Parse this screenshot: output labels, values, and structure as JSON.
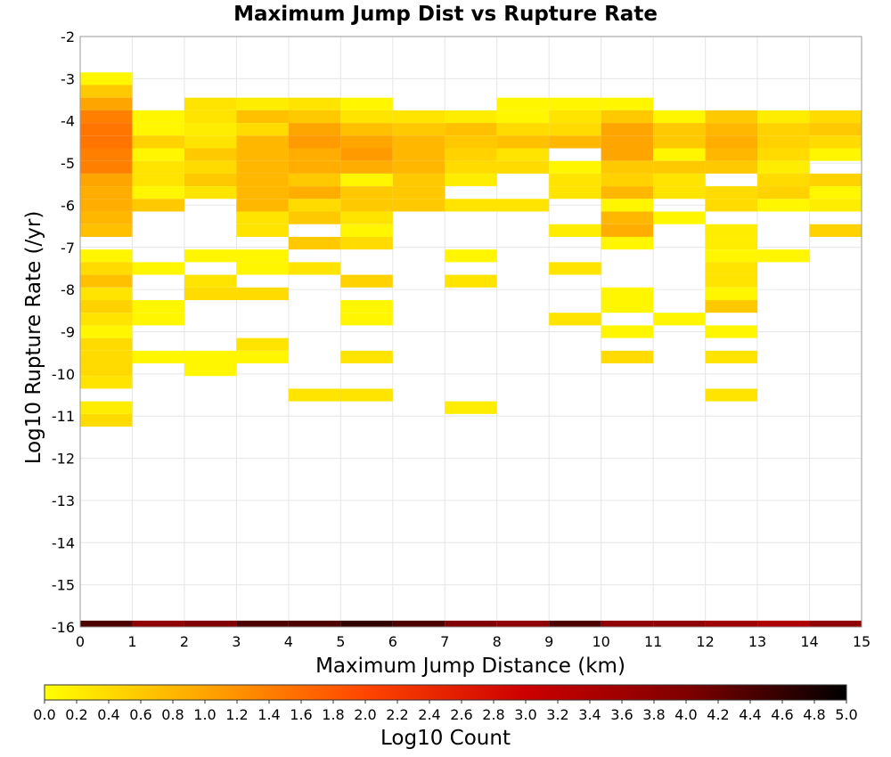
{
  "chart_data": {
    "type": "heatmap",
    "title": "Maximum Jump Dist vs Rupture Rate",
    "xlabel": "Maximum Jump Distance (km)",
    "ylabel": "Log10 Rupture Rate (/yr)",
    "xlim": [
      0,
      15
    ],
    "ylim": [
      -16,
      -2
    ],
    "x_ticks": [
      "0",
      "1",
      "2",
      "3",
      "4",
      "5",
      "6",
      "7",
      "8",
      "9",
      "10",
      "11",
      "12",
      "13",
      "14",
      "15"
    ],
    "y_ticks": [
      "-2",
      "-3",
      "-4",
      "-5",
      "-6",
      "-7",
      "-8",
      "-9",
      "-10",
      "-11",
      "-12",
      "-13",
      "-14",
      "-15",
      "-16"
    ],
    "bin_width_x": 1,
    "bin_height_y": 0.3,
    "colorbar": {
      "label": "Log10 Count",
      "min": 0,
      "max": 5,
      "ticks": [
        "0.0",
        "0.2",
        "0.4",
        "0.6",
        "0.8",
        "1.0",
        "1.2",
        "1.4",
        "1.6",
        "1.8",
        "2.0",
        "2.2",
        "2.4",
        "2.6",
        "2.8",
        "3.0",
        "3.2",
        "3.4",
        "3.6",
        "3.8",
        "4.0",
        "4.2",
        "4.4",
        "4.6",
        "4.8",
        "5.0"
      ],
      "colors": [
        "#ffff00",
        "#ffa500",
        "#ff4500",
        "#cc0000",
        "#800000",
        "#000000"
      ]
    },
    "grid": true,
    "cells": [
      {
        "x": 0,
        "rows": [
          [
            -3.0,
            0.1
          ],
          [
            -3.3,
            0.6
          ],
          [
            -3.6,
            1.0
          ],
          [
            -3.9,
            1.4
          ],
          [
            -4.2,
            1.5
          ],
          [
            -4.5,
            1.5
          ],
          [
            -4.8,
            1.4
          ],
          [
            -5.1,
            1.4
          ],
          [
            -5.4,
            1.0
          ],
          [
            -5.7,
            0.9
          ],
          [
            -6.0,
            0.9
          ],
          [
            -6.3,
            0.8
          ],
          [
            -6.6,
            0.7
          ],
          [
            -7.2,
            0.1
          ],
          [
            -7.5,
            0.4
          ],
          [
            -7.8,
            0.7
          ],
          [
            -8.1,
            0.3
          ],
          [
            -8.4,
            0.5
          ],
          [
            -8.7,
            0.3
          ],
          [
            -9.0,
            0.1
          ],
          [
            -9.3,
            0.4
          ],
          [
            -9.6,
            0.4
          ],
          [
            -9.9,
            0.4
          ],
          [
            -10.2,
            0.3
          ],
          [
            -10.8,
            0.2
          ],
          [
            -11.1,
            0.4
          ]
        ]
      },
      {
        "x": 1,
        "rows": [
          [
            -3.9,
            0.1
          ],
          [
            -4.2,
            0.1
          ],
          [
            -4.5,
            0.5
          ],
          [
            -4.8,
            0.1
          ],
          [
            -5.1,
            0.3
          ],
          [
            -5.4,
            0.3
          ],
          [
            -5.7,
            0.1
          ],
          [
            -6.0,
            0.6
          ],
          [
            -7.5,
            0.1
          ],
          [
            -8.4,
            0.1
          ],
          [
            -8.7,
            0.1
          ],
          [
            -9.6,
            0.1
          ]
        ]
      },
      {
        "x": 2,
        "rows": [
          [
            -3.6,
            0.3
          ],
          [
            -3.9,
            0.3
          ],
          [
            -4.2,
            0.2
          ],
          [
            -4.5,
            0.3
          ],
          [
            -4.8,
            0.6
          ],
          [
            -5.1,
            0.4
          ],
          [
            -5.4,
            0.6
          ],
          [
            -5.7,
            0.3
          ],
          [
            -7.2,
            0.1
          ],
          [
            -7.8,
            0.3
          ],
          [
            -8.1,
            0.4
          ],
          [
            -9.6,
            0.1
          ],
          [
            -9.9,
            0.1
          ]
        ]
      },
      {
        "x": 3,
        "rows": [
          [
            -3.6,
            0.2
          ],
          [
            -3.9,
            0.7
          ],
          [
            -4.2,
            0.4
          ],
          [
            -4.5,
            0.8
          ],
          [
            -4.8,
            0.8
          ],
          [
            -5.1,
            0.8
          ],
          [
            -5.4,
            0.8
          ],
          [
            -5.7,
            0.8
          ],
          [
            -6.0,
            0.8
          ],
          [
            -6.3,
            0.3
          ],
          [
            -6.6,
            0.3
          ],
          [
            -7.2,
            0.1
          ],
          [
            -7.5,
            0.1
          ],
          [
            -8.1,
            0.4
          ],
          [
            -9.3,
            0.3
          ],
          [
            -9.6,
            0.1
          ]
        ]
      },
      {
        "x": 4,
        "rows": [
          [
            -3.6,
            0.3
          ],
          [
            -3.9,
            0.6
          ],
          [
            -4.2,
            1.0
          ],
          [
            -4.5,
            1.1
          ],
          [
            -4.8,
            0.9
          ],
          [
            -5.1,
            0.9
          ],
          [
            -5.4,
            0.6
          ],
          [
            -5.7,
            0.9
          ],
          [
            -6.0,
            0.4
          ],
          [
            -6.3,
            0.6
          ],
          [
            -6.9,
            0.6
          ],
          [
            -7.5,
            0.3
          ],
          [
            -10.5,
            0.3
          ]
        ]
      },
      {
        "x": 5,
        "rows": [
          [
            -3.6,
            0.1
          ],
          [
            -3.9,
            0.3
          ],
          [
            -4.2,
            0.7
          ],
          [
            -4.5,
            1.0
          ],
          [
            -4.8,
            1.1
          ],
          [
            -5.1,
            0.9
          ],
          [
            -5.4,
            0.1
          ],
          [
            -5.7,
            0.6
          ],
          [
            -6.0,
            0.6
          ],
          [
            -6.3,
            0.3
          ],
          [
            -6.6,
            0.1
          ],
          [
            -6.9,
            0.4
          ],
          [
            -7.8,
            0.5
          ],
          [
            -8.4,
            0.1
          ],
          [
            -8.7,
            0.1
          ],
          [
            -9.6,
            0.3
          ],
          [
            -10.5,
            0.3
          ]
        ]
      },
      {
        "x": 6,
        "rows": [
          [
            -3.9,
            0.3
          ],
          [
            -4.2,
            0.6
          ],
          [
            -4.5,
            0.8
          ],
          [
            -4.8,
            0.8
          ],
          [
            -5.1,
            0.8
          ],
          [
            -5.4,
            0.6
          ],
          [
            -5.7,
            0.6
          ],
          [
            -6.0,
            0.6
          ]
        ]
      },
      {
        "x": 7,
        "rows": [
          [
            -3.9,
            0.2
          ],
          [
            -4.2,
            0.7
          ],
          [
            -4.5,
            0.6
          ],
          [
            -4.8,
            0.5
          ],
          [
            -5.1,
            0.4
          ],
          [
            -5.4,
            0.2
          ],
          [
            -6.0,
            0.3
          ],
          [
            -7.2,
            0.1
          ],
          [
            -7.8,
            0.3
          ],
          [
            -10.8,
            0.2
          ]
        ]
      },
      {
        "x": 8,
        "rows": [
          [
            -3.6,
            0.1
          ],
          [
            -3.9,
            0.1
          ],
          [
            -4.2,
            0.4
          ],
          [
            -4.5,
            0.7
          ],
          [
            -4.8,
            0.3
          ],
          [
            -5.1,
            0.4
          ],
          [
            -6.0,
            0.3
          ]
        ]
      },
      {
        "x": 9,
        "rows": [
          [
            -3.6,
            0.1
          ],
          [
            -3.9,
            0.3
          ],
          [
            -4.2,
            0.4
          ],
          [
            -4.5,
            0.8
          ],
          [
            -5.1,
            0.1
          ],
          [
            -5.4,
            0.3
          ],
          [
            -5.7,
            0.3
          ],
          [
            -6.6,
            0.2
          ],
          [
            -7.5,
            0.3
          ],
          [
            -8.7,
            0.3
          ]
        ]
      },
      {
        "x": 10,
        "rows": [
          [
            -3.6,
            0.1
          ],
          [
            -3.9,
            0.6
          ],
          [
            -4.2,
            1.0
          ],
          [
            -4.5,
            1.0
          ],
          [
            -4.8,
            1.0
          ],
          [
            -5.1,
            0.6
          ],
          [
            -5.4,
            0.5
          ],
          [
            -5.7,
            0.8
          ],
          [
            -6.0,
            0.1
          ],
          [
            -6.3,
            0.8
          ],
          [
            -6.6,
            0.9
          ],
          [
            -6.9,
            0.1
          ],
          [
            -8.1,
            0.1
          ],
          [
            -8.4,
            0.1
          ],
          [
            -9.0,
            0.1
          ],
          [
            -9.6,
            0.4
          ]
        ]
      },
      {
        "x": 11,
        "rows": [
          [
            -3.9,
            0.1
          ],
          [
            -4.2,
            0.6
          ],
          [
            -4.5,
            0.6
          ],
          [
            -4.8,
            0.1
          ],
          [
            -5.1,
            0.6
          ],
          [
            -5.4,
            0.3
          ],
          [
            -5.7,
            0.3
          ],
          [
            -6.3,
            0.1
          ],
          [
            -8.7,
            0.1
          ]
        ]
      },
      {
        "x": 12,
        "rows": [
          [
            -3.9,
            0.6
          ],
          [
            -4.2,
            0.8
          ],
          [
            -4.5,
            0.9
          ],
          [
            -4.8,
            0.8
          ],
          [
            -5.1,
            0.6
          ],
          [
            -5.7,
            0.4
          ],
          [
            -6.0,
            0.4
          ],
          [
            -6.6,
            0.2
          ],
          [
            -6.9,
            0.2
          ],
          [
            -7.2,
            0.1
          ],
          [
            -7.5,
            0.3
          ],
          [
            -7.8,
            0.3
          ],
          [
            -8.1,
            0.1
          ],
          [
            -8.4,
            0.6
          ],
          [
            -9.0,
            0.1
          ],
          [
            -9.6,
            0.3
          ],
          [
            -10.5,
            0.3
          ]
        ]
      },
      {
        "x": 13,
        "rows": [
          [
            -3.9,
            0.2
          ],
          [
            -4.2,
            0.5
          ],
          [
            -4.5,
            0.5
          ],
          [
            -4.8,
            0.4
          ],
          [
            -5.1,
            0.2
          ],
          [
            -5.4,
            0.4
          ],
          [
            -5.7,
            0.5
          ],
          [
            -6.0,
            0.1
          ],
          [
            -7.2,
            0.1
          ]
        ]
      },
      {
        "x": 14,
        "rows": [
          [
            -3.9,
            0.4
          ],
          [
            -4.2,
            0.6
          ],
          [
            -4.5,
            0.4
          ],
          [
            -4.8,
            0.1
          ],
          [
            -5.4,
            0.5
          ],
          [
            -5.7,
            0.1
          ],
          [
            -6.0,
            0.2
          ],
          [
            -6.6,
            0.5
          ]
        ]
      }
    ],
    "bottom_row": {
      "y": -16,
      "values": [
        4.4,
        3.8,
        4.0,
        4.4,
        4.4,
        4.6,
        4.4,
        4.0,
        3.8,
        4.4,
        3.8,
        3.8,
        3.6,
        3.4,
        3.8
      ]
    }
  }
}
